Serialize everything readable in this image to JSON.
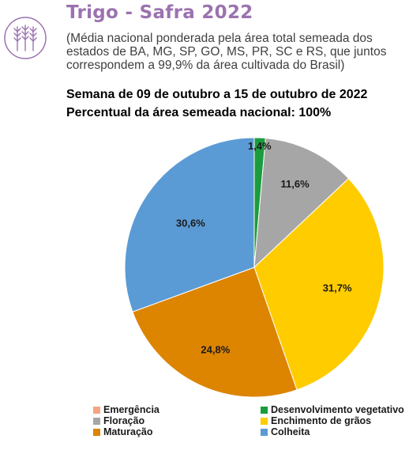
{
  "header": {
    "title": "Trigo - Safra 2022",
    "subtitle": "(Média nacional ponderada pela área total semeada dos estados de BA, MG, SP, GO, MS, PR, SC e RS, que juntos correspondem a 99,9% da área cultivada do Brasil)",
    "week": "Semana de 09 de outubro a 15 de outubro de 2022",
    "area_percent": "Percentual da área semeada nacional: 100%",
    "icon": "wheat-icon",
    "accent_color": "#9b72b0"
  },
  "chart_data": {
    "type": "pie",
    "title": "",
    "categories": [
      "Emergência",
      "Desenvolvimento vegetativo",
      "Floração",
      "Enchimento de grãos",
      "Maturação",
      "Colheita"
    ],
    "values": [
      0.0,
      1.4,
      11.6,
      31.7,
      24.8,
      30.6
    ],
    "labels": [
      "",
      "1,4%",
      "11,6%",
      "31,7%",
      "24,8%",
      "30,6%"
    ],
    "colors": [
      "#f4a582",
      "#1a9c3e",
      "#a6a6a6",
      "#ffcc00",
      "#dd8400",
      "#5b9bd5"
    ],
    "start_angle_deg": 0,
    "direction": "clockwise",
    "legend_position": "bottom"
  },
  "legend": [
    {
      "label": "Emergência",
      "color": "#f4a582"
    },
    {
      "label": "Desenvolvimento vegetativo",
      "color": "#1a9c3e"
    },
    {
      "label": "Floração",
      "color": "#a6a6a6"
    },
    {
      "label": "Enchimento de grãos",
      "color": "#ffcc00"
    },
    {
      "label": "Maturação",
      "color": "#dd8400"
    },
    {
      "label": "Colheita",
      "color": "#5b9bd5"
    }
  ]
}
